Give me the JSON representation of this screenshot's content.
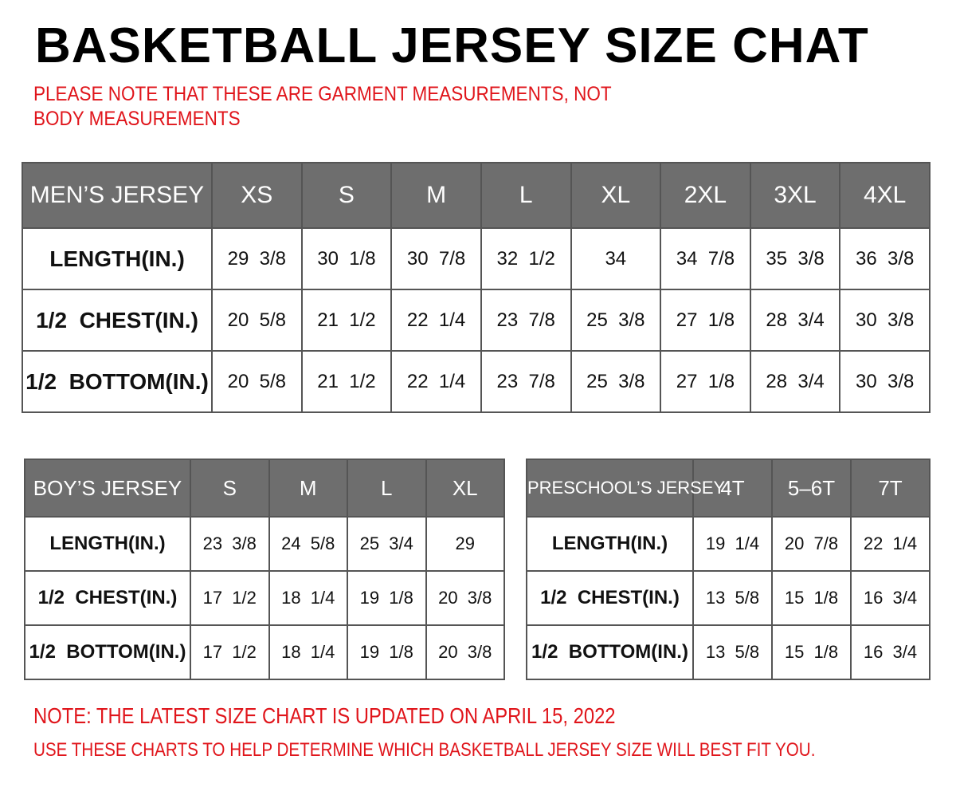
{
  "title": "BASKETBALL JERSEY SIZE CHAT",
  "note": "PLEASE NOTE THAT THESE ARE GARMENT MEASUREMENTS, NOT BODY MEASUREMENTS",
  "tables": {
    "men": {
      "header": [
        "MEN’S JERSEY",
        "XS",
        "S",
        "M",
        "L",
        "XL",
        "2XL",
        "3XL",
        "4XL"
      ],
      "rows": [
        [
          "LENGTH(IN.)",
          "29  3/8",
          "30  1/8",
          "30  7/8",
          "32  1/2",
          "34",
          "34  7/8",
          "35  3/8",
          "36  3/8"
        ],
        [
          "1/2  CHEST(IN.)",
          "20  5/8",
          "21  1/2",
          "22  1/4",
          "23  7/8",
          "25  3/8",
          "27  1/8",
          "28  3/4",
          "30  3/8"
        ],
        [
          "1/2  BOTTOM(IN.)",
          "20  5/8",
          "21  1/2",
          "22  1/4",
          "23  7/8",
          "25  3/8",
          "27  1/8",
          "28  3/4",
          "30  3/8"
        ]
      ]
    },
    "boy": {
      "header": [
        "BOY’S JERSEY",
        "S",
        "M",
        "L",
        "XL"
      ],
      "rows": [
        [
          "LENGTH(IN.)",
          "23  3/8",
          "24  5/8",
          "25  3/4",
          "29"
        ],
        [
          "1/2  CHEST(IN.)",
          "17  1/2",
          "18  1/4",
          "19  1/8",
          "20  3/8"
        ],
        [
          "1/2  BOTTOM(IN.)",
          "17  1/2",
          "18  1/4",
          "19  1/8",
          "20  3/8"
        ]
      ]
    },
    "pre": {
      "header": [
        "PRESCHOOL’S JERSEY",
        "4T",
        "5–6T",
        "7T"
      ],
      "rows": [
        [
          "LENGTH(IN.)",
          "19  1/4",
          "20  7/8",
          "22  1/4"
        ],
        [
          "1/2  CHEST(IN.)",
          "13  5/8",
          "15  1/8",
          "16  3/4"
        ],
        [
          "1/2  BOTTOM(IN.)",
          "13  5/8",
          "15  1/8",
          "16  3/4"
        ]
      ]
    }
  },
  "footer": {
    "line1": "NOTE: THE LATEST SIZE CHART IS UPDATED ON APRIL 15, 2022",
    "line2": "USE THESE CHARTS TO HELP DETERMINE WHICH  BASKETBALL JERSEY  SIZE WILL BEST FIT YOU."
  },
  "colors": {
    "header_bg": "#6e6e6e",
    "note_red": "#e0151b"
  }
}
